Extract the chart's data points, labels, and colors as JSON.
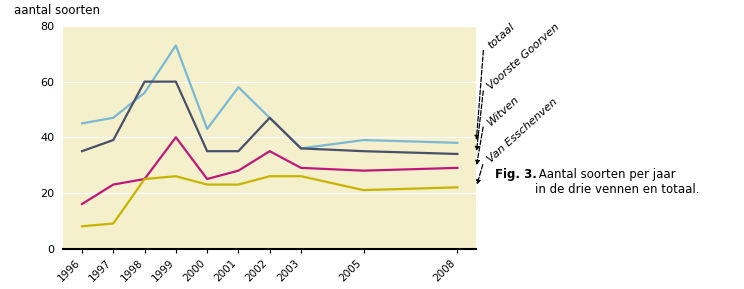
{
  "years": [
    1996,
    1997,
    1998,
    1999,
    2000,
    2001,
    2002,
    2003,
    2005,
    2008
  ],
  "totaal": [
    45,
    47,
    56,
    73,
    43,
    58,
    47,
    36,
    39,
    38
  ],
  "voorste_goorven": [
    35,
    39,
    60,
    60,
    35,
    35,
    47,
    36,
    35,
    34
  ],
  "witven": [
    16,
    23,
    25,
    40,
    25,
    28,
    35,
    29,
    28,
    29
  ],
  "van_esschenven": [
    8,
    9,
    25,
    26,
    23,
    23,
    26,
    26,
    21,
    22
  ],
  "color_totaal": "#7ab8d4",
  "color_voorste": "#4a5068",
  "color_witven": "#c0187a",
  "color_esschenven": "#c8b400",
  "bg_color": "#f5f0cc",
  "ylabel": "aantal soorten",
  "ylim": [
    0,
    80
  ],
  "yticks": [
    0,
    20,
    40,
    60,
    80
  ],
  "fig_caption_bold": "Fig. 3.",
  "fig_caption_rest": " Aantal soorten per jaar\nin de drie vennen en totaal.",
  "label_info": [
    {
      "label": "totaal",
      "y_data": 38
    },
    {
      "label": "Voorste Goorven",
      "y_data": 34
    },
    {
      "label": "Witven",
      "y_data": 29
    },
    {
      "label": "Van Esschenven",
      "y_data": 22
    }
  ]
}
